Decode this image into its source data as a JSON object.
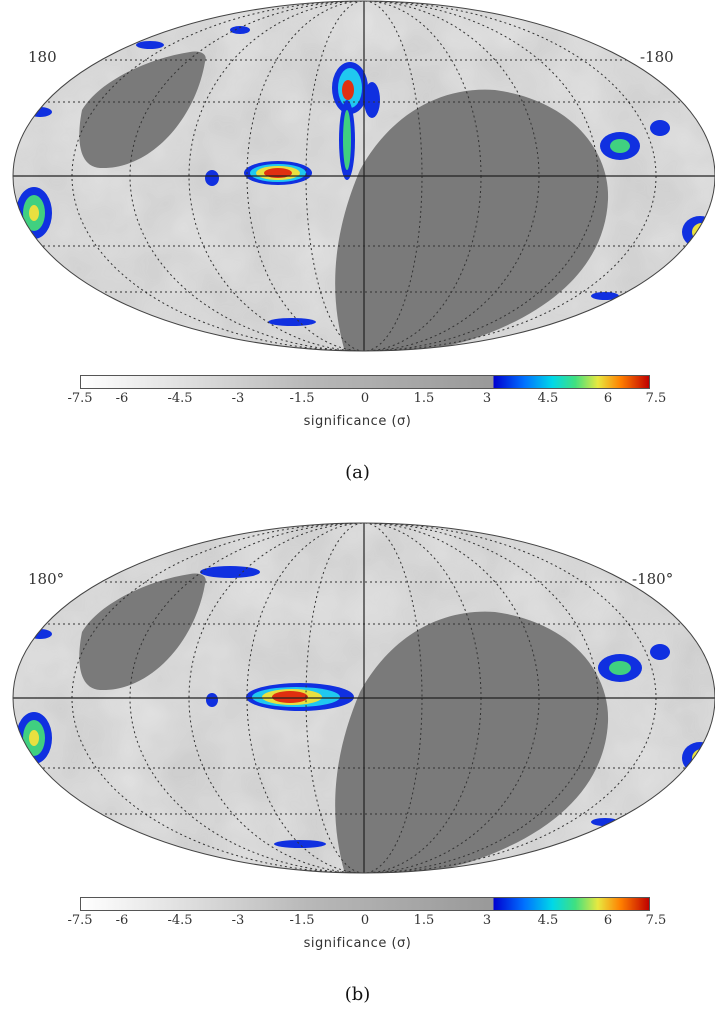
{
  "panels": [
    {
      "id": "a",
      "lon_left": "180",
      "lon_right": "-180",
      "colorbar_ticks": [
        "-7.5",
        "-6",
        "-4.5",
        "-3",
        "-1.5",
        "0",
        "1.5",
        "3",
        "4.5",
        "6",
        "7.5"
      ],
      "colorbar_label": "significance (σ)",
      "caption": "(a)"
    },
    {
      "id": "b",
      "lon_left": "180°",
      "lon_right": "-180°",
      "colorbar_ticks": [
        "-7.5",
        "-6",
        "-4.5",
        "-3",
        "-1.5",
        "0",
        "1.5",
        "3",
        "4.5",
        "6",
        "7.5"
      ],
      "colorbar_label": "significance (σ)",
      "caption": "(b)"
    }
  ],
  "colors": {
    "map_background": "#d4d4d4",
    "masked_region": "#7a7a7a",
    "colorbar_low": "#ffffff",
    "colorbar_mid": "#999999",
    "colorbar_high": "#c00000"
  }
}
